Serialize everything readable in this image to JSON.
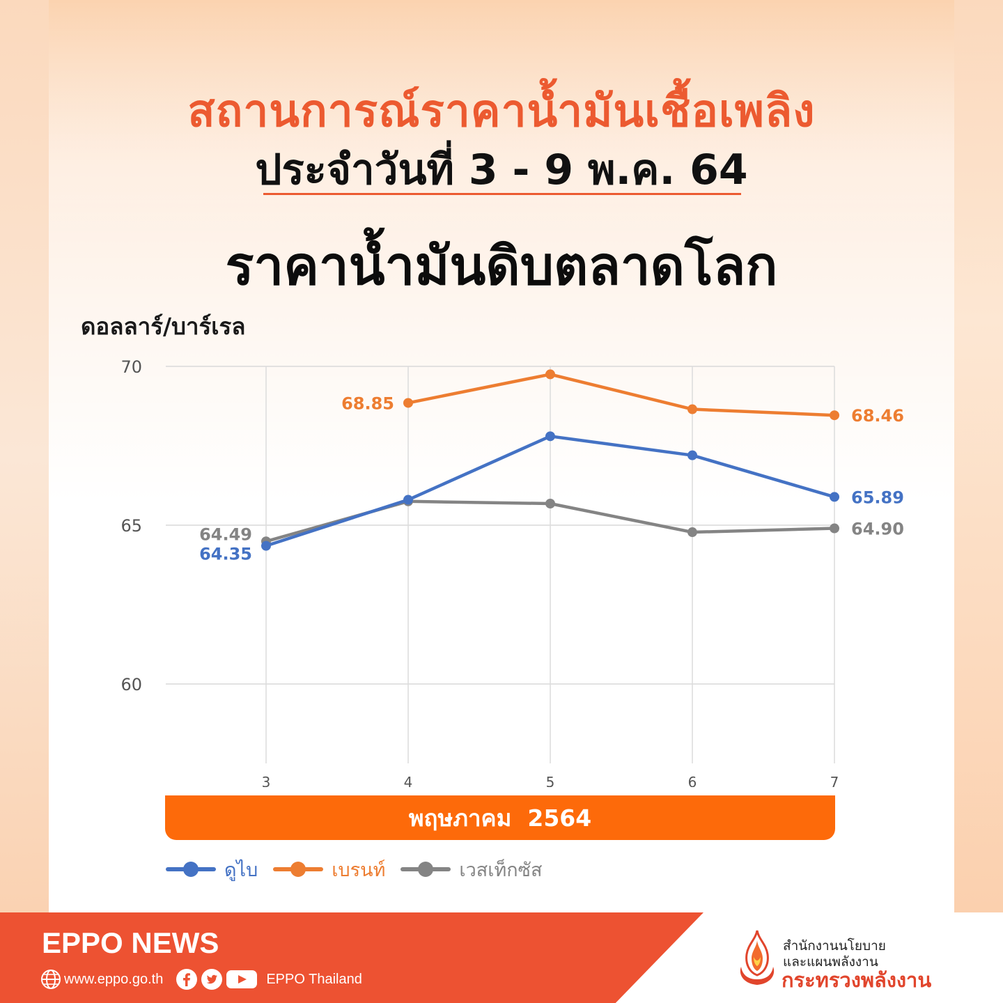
{
  "header": {
    "title": "สถานการณ์ราคาน้ำมันเชื้อเพลิง",
    "date_line": "ประจำวันที่ 3 - 9 พ.ค. 64",
    "subtitle": "ราคาน้ำมันดิบตลาดโลก"
  },
  "colors": {
    "accent": "#ec5a30",
    "dubai": "#4472c4",
    "brent": "#ed7d31",
    "wti": "#848484",
    "month_bar": "#fd6a0a",
    "footer": "#ed5232"
  },
  "chart_data": {
    "type": "line",
    "ylabel": "ดอลลาร์/บาร์เรล",
    "xlabel": "พฤษภาคม  2564",
    "x": [
      3,
      4,
      5,
      6,
      7
    ],
    "ylim": [
      57.5,
      70
    ],
    "yticks": [
      60,
      65,
      70
    ],
    "grid": true,
    "legend_position": "bottom-left",
    "series": [
      {
        "name": "ดูไบ",
        "color": "#4472c4",
        "values": [
          64.35,
          65.8,
          67.8,
          67.2,
          65.89
        ],
        "labels": {
          "0": "64.35",
          "4": "65.89"
        }
      },
      {
        "name": "เบรนท์",
        "color": "#ed7d31",
        "values": [
          null,
          68.85,
          69.75,
          68.65,
          68.46
        ],
        "labels": {
          "1": "68.85",
          "4": "68.46"
        }
      },
      {
        "name": "เวสเท็กซัส",
        "color": "#848484",
        "values": [
          64.49,
          65.75,
          65.68,
          64.78,
          64.9
        ],
        "labels": {
          "0": "64.49",
          "4": "64.90"
        }
      }
    ]
  },
  "footer": {
    "brand": "EPPO NEWS",
    "website": "www.eppo.go.th",
    "social": "EPPO Thailand",
    "org_line1": "สำนักงานนโยบาย",
    "org_line2": "และแผนพลังงาน",
    "ministry": "กระทรวงพลังงาน"
  },
  "icons": [
    "globe-icon",
    "facebook-icon",
    "twitter-icon",
    "youtube-icon",
    "flame-logo-icon"
  ]
}
